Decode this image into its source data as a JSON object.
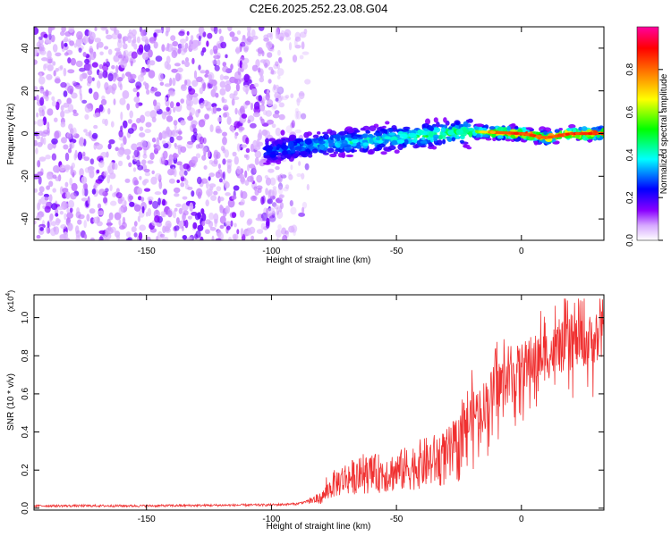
{
  "title": "C2E6.2025.252.23.08.G04",
  "chart_data": [
    {
      "type": "heatmap",
      "name": "spectrogram",
      "xlabel": "Height of straight line (km)",
      "ylabel": "Frequency (Hz)",
      "xlim": [
        -195,
        33
      ],
      "ylim": [
        -50,
        50
      ],
      "xticks": [
        -150,
        -100,
        -50,
        0
      ],
      "yticks": [
        -40,
        -20,
        0,
        20,
        40
      ],
      "tick_labels_x": [
        "-150",
        "-100",
        "-50",
        "0"
      ],
      "tick_labels_y": [
        "-40",
        "-20",
        "0",
        "20",
        "40"
      ],
      "colorbar": {
        "label": "Normalized spectral amplitude",
        "range": [
          0,
          1
        ],
        "ticks": [
          0.0,
          0.2,
          0.4,
          0.6,
          0.8
        ],
        "tick_labels": [
          "0.0",
          "0.2",
          "0.4",
          "0.6",
          "0.8"
        ],
        "colormap": [
          "#ffffff",
          "#8a00ff",
          "#0000ff",
          "#00ffff",
          "#00ff00",
          "#ffff00",
          "#ff8000",
          "#ff0000",
          "#ff00a0"
        ]
      },
      "noise_region_x": [
        -195,
        -85
      ],
      "signal_track": {
        "x": [
          -100,
          -80,
          -60,
          -40,
          -20,
          -10,
          0,
          10,
          20,
          33
        ],
        "freq_hz": [
          -8,
          -5,
          -3,
          -1,
          1,
          0.5,
          0,
          -2,
          0,
          0
        ],
        "amplitude": [
          0.3,
          0.4,
          0.45,
          0.5,
          0.55,
          0.85,
          0.9,
          0.85,
          0.9,
          0.9
        ]
      }
    },
    {
      "type": "line",
      "name": "snr",
      "xlabel": "Height of straight line (km)",
      "ylabel": "SNR (10 * v/v)",
      "y_scale_label": "(x10",
      "y_scale_exponent": "4",
      "xlim": [
        -195,
        33
      ],
      "ylim": [
        -0.01,
        1.12
      ],
      "xticks": [
        -150,
        -100,
        -50,
        0
      ],
      "yticks": [
        0.0,
        0.2,
        0.4,
        0.6,
        0.8,
        1.0
      ],
      "tick_labels_x": [
        "-150",
        "-100",
        "-50",
        "0"
      ],
      "tick_labels_y": [
        "0.0",
        "0.2",
        "0.4",
        "0.6",
        "0.8",
        "1.0"
      ],
      "color": "#f03030",
      "series": [
        {
          "name": "SNR",
          "x": [
            -195,
            -150,
            -100,
            -90,
            -80,
            -75,
            -70,
            -60,
            -50,
            -40,
            -30,
            -25,
            -20,
            -15,
            -10,
            0,
            10,
            20,
            30,
            33
          ],
          "y": [
            0.01,
            0.01,
            0.015,
            0.02,
            0.05,
            0.12,
            0.15,
            0.17,
            0.18,
            0.22,
            0.25,
            0.3,
            0.5,
            0.55,
            0.65,
            0.75,
            0.82,
            0.88,
            0.9,
            0.92
          ]
        }
      ]
    }
  ]
}
